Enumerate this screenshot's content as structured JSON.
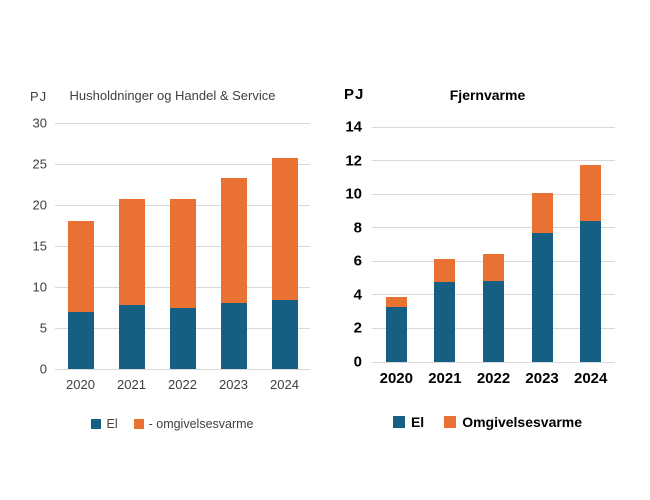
{
  "styles": {
    "background": "#ffffff",
    "grid_color": "#D9D9D9",
    "muted_text_color": "#404040",
    "strong_text_color": "#000000",
    "el_color": "#156082",
    "omgivelsesvarme_color": "#E97132"
  },
  "chart_data": [
    {
      "type": "bar",
      "subtype": "stacked-column",
      "title": "Husholdninger og Handel & Service",
      "ylabel": "PJ",
      "xlabel": "",
      "categories": [
        "2020",
        "2021",
        "2022",
        "2023",
        "2024"
      ],
      "series": [
        {
          "name": "El",
          "color": "#156082",
          "values": [
            7.0,
            7.8,
            7.5,
            8.0,
            8.4
          ]
        },
        {
          "name": "- omgivelsesvarme",
          "color": "#E97132",
          "values": [
            11.1,
            12.9,
            13.2,
            15.3,
            17.3
          ]
        }
      ],
      "totals": [
        18.1,
        20.7,
        20.7,
        23.3,
        25.7
      ],
      "ylim": [
        0,
        30
      ],
      "ytick_step": 5,
      "grid": true,
      "legend_position": "bottom"
    },
    {
      "type": "bar",
      "subtype": "stacked-column",
      "title": "Fjernvarme",
      "ylabel": "PJ",
      "xlabel": "",
      "categories": [
        "2020",
        "2021",
        "2022",
        "2023",
        "2024"
      ],
      "series": [
        {
          "name": "El",
          "color": "#156082",
          "values": [
            3.3,
            4.75,
            4.8,
            7.7,
            8.4
          ]
        },
        {
          "name": "Omgivelsesvarme",
          "color": "#E97132",
          "values": [
            0.55,
            1.4,
            1.65,
            2.35,
            3.35
          ]
        }
      ],
      "totals": [
        3.85,
        6.15,
        6.45,
        10.05,
        11.75
      ],
      "ylim": [
        0,
        14
      ],
      "ytick_step": 2,
      "grid": true,
      "legend_position": "bottom"
    }
  ]
}
